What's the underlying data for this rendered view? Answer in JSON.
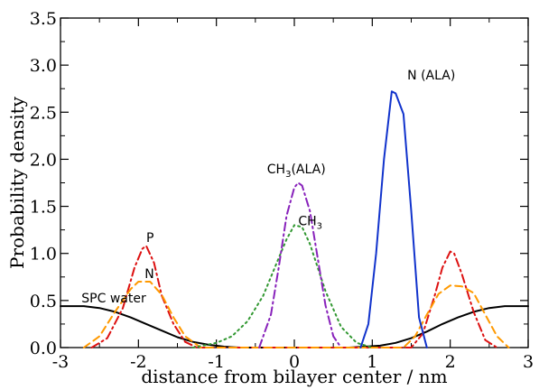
{
  "chart_data": {
    "type": "line",
    "xlabel": "distance from bilayer center / nm",
    "ylabel": "Probability density",
    "xlim": [
      -3,
      3
    ],
    "ylim": [
      0,
      3.5
    ],
    "xticks": [
      -3,
      -2,
      -1,
      0,
      1,
      2,
      3
    ],
    "yticks": [
      "0.0",
      "0.5",
      "1.0",
      "1.5",
      "2.0",
      "2.5",
      "3.0",
      "3.5"
    ],
    "grid": false,
    "series": [
      {
        "key": "water",
        "color": "#000000",
        "style": "solid",
        "x": [
          -3.0,
          -2.7,
          -2.5,
          -2.3,
          -2.1,
          -1.9,
          -1.7,
          -1.5,
          -1.3,
          -1.1,
          -0.9,
          -0.7,
          -0.5,
          0.5,
          0.7,
          0.9,
          1.1,
          1.3,
          1.5,
          1.7,
          1.9,
          2.1,
          2.3,
          2.5,
          2.7,
          3.0
        ],
        "y": [
          0.44,
          0.44,
          0.42,
          0.38,
          0.32,
          0.25,
          0.18,
          0.11,
          0.06,
          0.03,
          0.01,
          0.0,
          0.0,
          0.0,
          0.0,
          0.01,
          0.02,
          0.05,
          0.1,
          0.17,
          0.25,
          0.32,
          0.38,
          0.42,
          0.44,
          0.44
        ]
      },
      {
        "key": "P",
        "color": "#dd1111",
        "style": "dashdot",
        "x": [
          -2.6,
          -2.4,
          -2.2,
          -2.05,
          -1.95,
          -1.9,
          -1.8,
          -1.7,
          -1.55,
          -1.4,
          -1.25,
          1.5,
          1.65,
          1.8,
          1.9,
          2.0,
          2.05,
          2.15,
          2.3,
          2.45,
          2.6
        ],
        "y": [
          0.0,
          0.1,
          0.42,
          0.85,
          1.05,
          1.08,
          0.9,
          0.55,
          0.25,
          0.06,
          0.0,
          0.0,
          0.15,
          0.55,
          0.85,
          1.02,
          1.0,
          0.78,
          0.38,
          0.08,
          0.0
        ]
      },
      {
        "key": "N",
        "color": "#ff9900",
        "style": "dashed",
        "x": [
          -2.7,
          -2.5,
          -2.3,
          -2.1,
          -2.0,
          -1.85,
          -1.7,
          -1.55,
          -1.4,
          -1.2,
          1.4,
          1.55,
          1.7,
          1.85,
          2.0,
          2.15,
          2.3,
          2.45,
          2.6,
          2.75
        ],
        "y": [
          0.0,
          0.12,
          0.38,
          0.62,
          0.7,
          0.7,
          0.56,
          0.32,
          0.12,
          0.0,
          0.0,
          0.12,
          0.35,
          0.57,
          0.66,
          0.65,
          0.58,
          0.35,
          0.12,
          0.0
        ]
      },
      {
        "key": "CH3",
        "color": "#339933",
        "style": "dotted",
        "x": [
          -1.3,
          -1.0,
          -0.8,
          -0.6,
          -0.4,
          -0.2,
          -0.1,
          0.0,
          0.1,
          0.2,
          0.4,
          0.6,
          0.8,
          1.0
        ],
        "y": [
          0.0,
          0.05,
          0.12,
          0.28,
          0.55,
          0.95,
          1.15,
          1.3,
          1.28,
          1.1,
          0.6,
          0.22,
          0.05,
          0.0
        ]
      },
      {
        "key": "CH3_ALA",
        "color": "#8822bb",
        "style": "dashdot",
        "x": [
          -0.45,
          -0.3,
          -0.2,
          -0.1,
          0.0,
          0.05,
          0.1,
          0.2,
          0.3,
          0.4,
          0.5,
          0.6
        ],
        "y": [
          0.0,
          0.35,
          0.85,
          1.4,
          1.7,
          1.75,
          1.72,
          1.45,
          0.95,
          0.45,
          0.12,
          0.0
        ]
      },
      {
        "key": "N_ALA",
        "color": "#1133cc",
        "style": "solid",
        "x": [
          0.85,
          0.95,
          1.05,
          1.15,
          1.25,
          1.3,
          1.4,
          1.5,
          1.6,
          1.7
        ],
        "y": [
          0.0,
          0.25,
          1.0,
          2.0,
          2.72,
          2.7,
          2.48,
          1.45,
          0.32,
          0.0
        ]
      }
    ],
    "annotations": [
      {
        "key": "N_ALA",
        "text": "N (ALA)",
        "x": 1.45,
        "y": 2.85
      },
      {
        "key": "CH3_ALA",
        "text": "CH",
        "sub": "3",
        "tail": "(ALA)",
        "x": -0.35,
        "y": 1.85
      },
      {
        "key": "CH3",
        "text": "CH",
        "sub": "3",
        "tail": "",
        "x": 0.05,
        "y": 1.3
      },
      {
        "key": "P",
        "text": "P",
        "x": -1.9,
        "y": 1.12
      },
      {
        "key": "N",
        "text": "N",
        "x": -1.92,
        "y": 0.74
      },
      {
        "key": "water",
        "text": "SPC water",
        "x": -2.73,
        "y": 0.48
      }
    ]
  }
}
